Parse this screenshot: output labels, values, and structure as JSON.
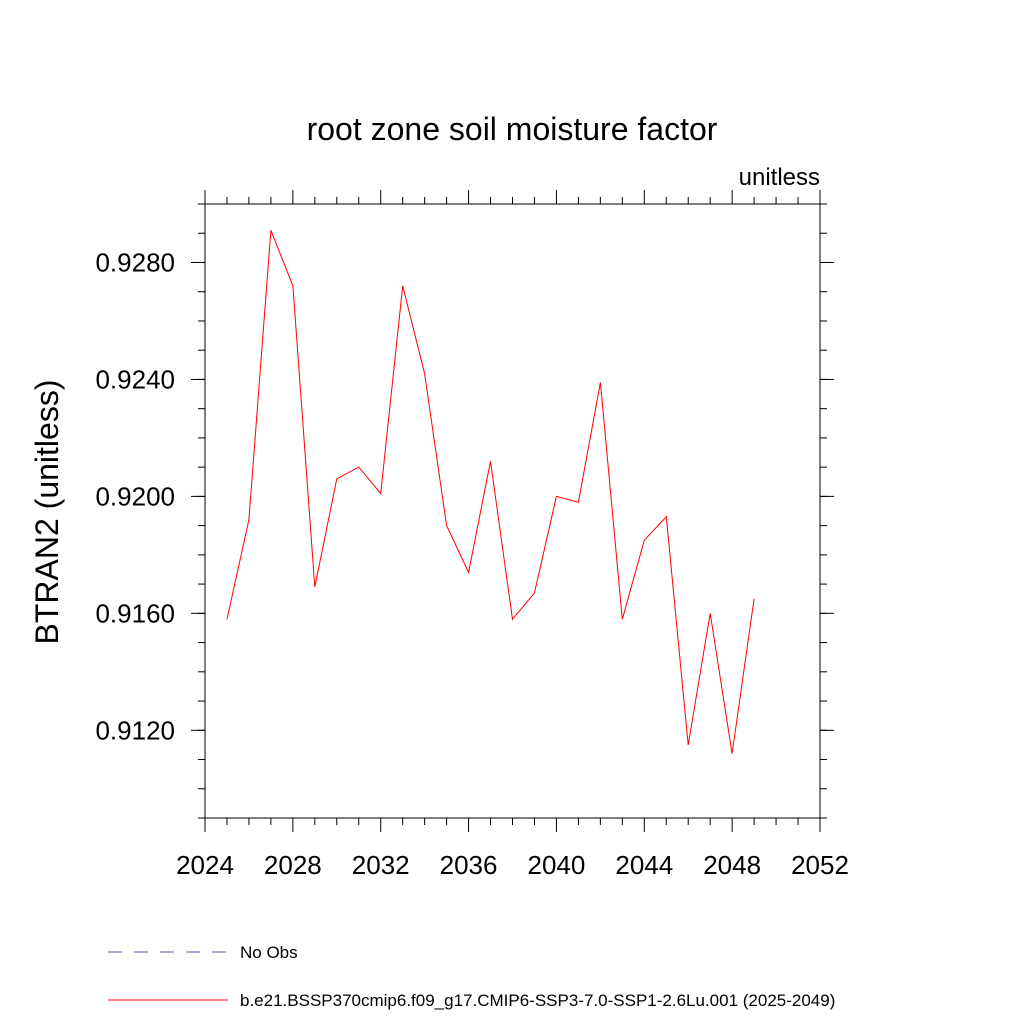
{
  "chart_data": {
    "type": "line",
    "title": "root zone soil moisture factor",
    "units_label": "unitless",
    "ylabel": "BTRAN2  (unitless)",
    "xlabel": "",
    "xlim": [
      2024,
      2052
    ],
    "ylim": [
      0.909,
      0.93
    ],
    "x_ticks": [
      "2024",
      "2028",
      "2032",
      "2036",
      "2040",
      "2044",
      "2048",
      "2052"
    ],
    "y_ticks": [
      "0.9120",
      "0.9160",
      "0.9200",
      "0.9240",
      "0.9280"
    ],
    "series": [
      {
        "name": "b.e21.BSSP370cmip6.f09_g17.CMIP6-SSP3-7.0-SSP1-2.6Lu.001 (2025-2049)",
        "color": "#ff0000",
        "x": [
          2025,
          2026,
          2027,
          2028,
          2029,
          2030,
          2031,
          2032,
          2033,
          2034,
          2035,
          2036,
          2037,
          2038,
          2039,
          2040,
          2041,
          2042,
          2043,
          2044,
          2045,
          2046,
          2047,
          2048,
          2049
        ],
        "y": [
          0.9158,
          0.9192,
          0.9291,
          0.9272,
          0.9169,
          0.9206,
          0.921,
          0.9201,
          0.9272,
          0.9242,
          0.919,
          0.9174,
          0.9212,
          0.9158,
          0.9167,
          0.92,
          0.9198,
          0.9239,
          0.9158,
          0.9185,
          0.9193,
          0.9115,
          0.916,
          0.9112,
          0.9165
        ]
      }
    ],
    "legend": [
      {
        "label": "No Obs",
        "style": "dashed",
        "color": "#5a4fb0"
      },
      {
        "label": "b.e21.BSSP370cmip6.f09_g17.CMIP6-SSP3-7.0-SSP1-2.6Lu.001 (2025-2049)",
        "style": "solid",
        "color": "#ff0000"
      }
    ],
    "legend_position": "bottom",
    "grid": false
  }
}
